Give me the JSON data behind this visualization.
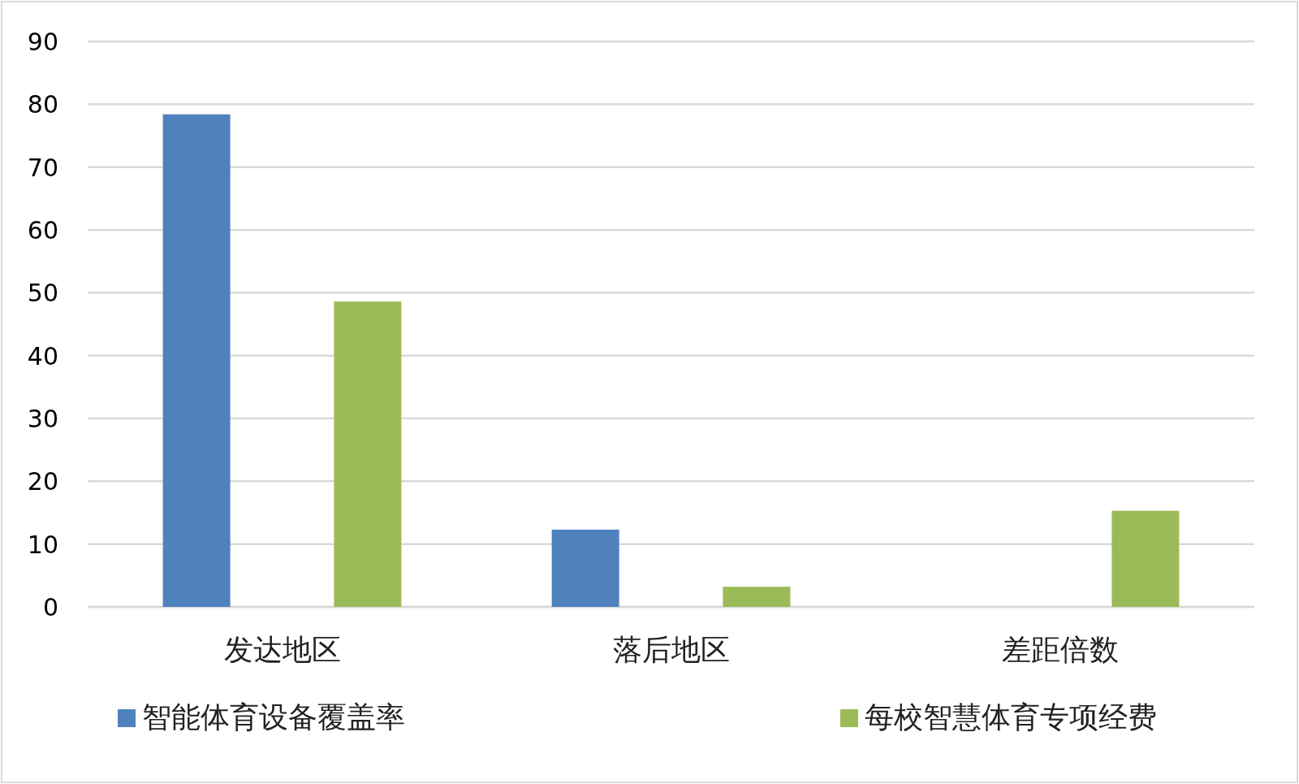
{
  "chart_data": {
    "type": "bar",
    "categories": [
      "发达地区",
      "落后地区",
      "差距倍数"
    ],
    "series": [
      {
        "name": "智能体育设备覆盖率",
        "color": "#4f81bd",
        "values": [
          78.4,
          12.3,
          null
        ]
      },
      {
        "name": "每校智慧体育专项经费",
        "color": "#9bbb59",
        "values": [
          48.6,
          3.2,
          15.3
        ]
      }
    ],
    "ylim": [
      0,
      90
    ],
    "yticks": [
      0,
      10,
      20,
      30,
      40,
      50,
      60,
      70,
      80,
      90
    ],
    "grid": "y",
    "legend": "bottom"
  }
}
